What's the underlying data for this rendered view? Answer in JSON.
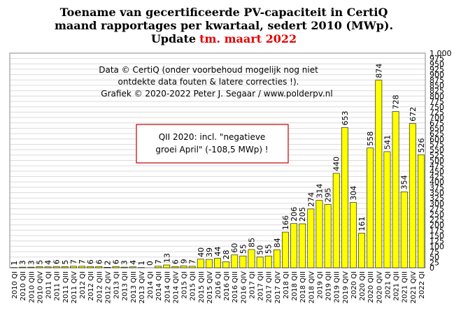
{
  "chart_data": {
    "type": "bar",
    "title_lines": [
      "Toename van gecertificeerde PV-capaciteit in CertiQ",
      "maand rapportages per kwartaal, sedert 2010 (MWp)."
    ],
    "title_update_prefix": "Update",
    "title_update": "tm. maart 2022",
    "title_update_color": "#e00000",
    "source_lines": [
      "Data © CertiQ (onder voorbehoud mogelijk  nog niet",
      "ontdekte data fouten & latere correcties !).",
      "Grafiek  © 2020-2022 Peter J. Segaar / www.polderpv.nl"
    ],
    "annotation_lines": [
      "QII 2020:  incl. \"negatieve",
      "groei April\"  (-108,5 MWp)  !"
    ],
    "annotation_border_color": "#c00000",
    "categories": [
      "2010 QI",
      "2010 QII",
      "2010 QIII",
      "2010 QIV",
      "2011 QI",
      "2011 QII",
      "2011 QIII",
      "2011 QIV",
      "2012 QI",
      "2012 QII",
      "2012 QIII",
      "2012 QIV",
      "2013 QI",
      "2013 QII",
      "2013 QIII",
      "2013 QIV",
      "2014 QI",
      "2014 QII",
      "2014 QIII",
      "2014 QIV",
      "2015 QI",
      "2015 QII",
      "2015 QIII",
      "2015 QIV",
      "2016 QI",
      "2016 QII",
      "2016 QIII",
      "2016 QIV",
      "2017 QI",
      "2017 QII",
      "2017 QIII",
      "2017 QIV",
      "2018 QI",
      "2018 QII",
      "2018 QIII",
      "2018 QIV",
      "2019 QI",
      "2019 QII",
      "2019 QIII",
      "2019 QIV",
      "2020 QI",
      "2020 QII",
      "2020 QIII",
      "2020 QIV",
      "2021 QI",
      "2021 QII",
      "2021 QIII",
      "2021 QIV",
      "2022 QI"
    ],
    "values": [
      1,
      3,
      3,
      5,
      4,
      6,
      5,
      7,
      7,
      6,
      6,
      2,
      6,
      3,
      4,
      1,
      0,
      7,
      13,
      6,
      9,
      7,
      40,
      39,
      44,
      28,
      60,
      55,
      85,
      50,
      55,
      84,
      166,
      206,
      205,
      274,
      314,
      295,
      440,
      653,
      304,
      161,
      558,
      874,
      541,
      728,
      354,
      672,
      526
    ],
    "color": "#ffff00",
    "max_label_color": "#c00000",
    "ylim": [
      0,
      1000
    ],
    "yticks": [
      0,
      25,
      50,
      75,
      100,
      125,
      150,
      175,
      200,
      225,
      250,
      275,
      300,
      325,
      350,
      375,
      400,
      425,
      450,
      475,
      500,
      525,
      550,
      575,
      600,
      625,
      650,
      675,
      700,
      725,
      750,
      775,
      800,
      825,
      850,
      875,
      900,
      925,
      950,
      975,
      {
        "value": 1000,
        "label": "1.000"
      }
    ],
    "grid": true
  }
}
